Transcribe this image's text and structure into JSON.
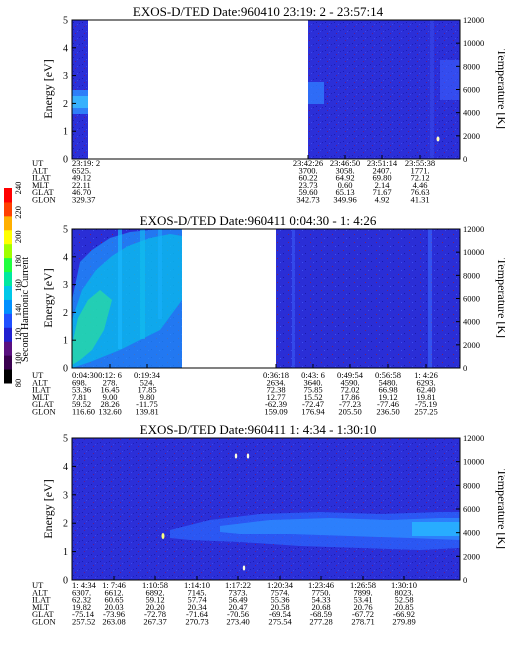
{
  "colorbar": {
    "label": "Second Harmonic Current",
    "ticks": [
      80,
      100,
      120,
      140,
      160,
      180,
      200,
      220,
      240
    ],
    "colors": [
      "#000000",
      "#3a0050",
      "#5a1080",
      "#2020d0",
      "#2050ff",
      "#0090ff",
      "#00c8e8",
      "#00e8a0",
      "#20ff40",
      "#a0ff00",
      "#ffff00",
      "#ffb000",
      "#ff4000",
      "#ff0000"
    ]
  },
  "chart_data": [
    {
      "type": "heatmap",
      "title": "EXOS-D/TED   Date:960410  23:19: 2 - 23:57:14",
      "ylabel": "Energy [eV]",
      "y2label": "Temperature [K]",
      "ylim": [
        0,
        5
      ],
      "y2lim": [
        0,
        12000
      ],
      "yticks": [
        "0",
        "1",
        "2",
        "3",
        "4",
        "5"
      ],
      "y2ticks": [
        "0",
        "2000",
        "4000",
        "6000",
        "8000",
        "10000",
        "12000"
      ],
      "rows": [
        {
          "label": "UT",
          "values": [
            "23:19: 2",
            "23:42:26",
            "23:46:50",
            "23:51:14",
            "23:55:38"
          ]
        },
        {
          "label": "ALT",
          "values": [
            "6525.",
            "3700.",
            "3058.",
            "2407.",
            "1771."
          ]
        },
        {
          "label": "ILAT",
          "values": [
            "49.12",
            "60.22",
            "64.92",
            "69.80",
            "72.12"
          ]
        },
        {
          "label": "MLT",
          "values": [
            "22.11",
            "23.73",
            "0.60",
            "2.14",
            "4.46"
          ]
        },
        {
          "label": "GLAT",
          "values": [
            "46.70",
            "59.60",
            "65.13",
            "71.67",
            "76.63"
          ]
        },
        {
          "label": "GLON",
          "values": [
            "329.37",
            "342.73",
            "349.96",
            "4.92",
            "41.31"
          ]
        }
      ]
    },
    {
      "type": "heatmap",
      "title": "EXOS-D/TED   Date:960411  0:04:30 - 1: 4:26",
      "ylabel": "Energy [eV]",
      "y2label": "Temperature [K]",
      "ylim": [
        0,
        5
      ],
      "y2lim": [
        0,
        12000
      ],
      "yticks": [
        "0",
        "1",
        "2",
        "3",
        "4",
        "5"
      ],
      "y2ticks": [
        "0",
        "2000",
        "4000",
        "6000",
        "8000",
        "10000",
        "12000"
      ],
      "rows": [
        {
          "label": "UT",
          "values": [
            "0:04:30",
            "0:12: 6",
            "0:19:34",
            "0:36:18",
            "0:43: 6",
            "0:49:54",
            "0:56:58",
            "1: 4:26"
          ]
        },
        {
          "label": "ALT",
          "values": [
            "698.",
            "278.",
            "524.",
            "2634.",
            "3640.",
            "4590.",
            "5480.",
            "6293."
          ]
        },
        {
          "label": "ILAT",
          "values": [
            "53.36",
            "16.45",
            "17.85",
            "72.38",
            "75.85",
            "72.02",
            "66.98",
            "62.40"
          ]
        },
        {
          "label": "MLT",
          "values": [
            "7.81",
            "9.00",
            "9.80",
            "12.77",
            "15.52",
            "17.86",
            "19.12",
            "19.81"
          ]
        },
        {
          "label": "GLAT",
          "values": [
            "59.52",
            "28.26",
            "-11.75",
            "-62.39",
            "-72.47",
            "-77.23",
            "-77.46",
            "-75.19"
          ]
        },
        {
          "label": "GLON",
          "values": [
            "116.60",
            "132.60",
            "139.81",
            "159.09",
            "176.94",
            "205.50",
            "236.50",
            "257.25"
          ]
        }
      ]
    },
    {
      "type": "heatmap",
      "title": "EXOS-D/TED   Date:960411  1: 4:34 - 1:30:10",
      "ylabel": "Energy [eV]",
      "y2label": "Temperature [K]",
      "ylim": [
        0,
        5
      ],
      "y2lim": [
        0,
        12000
      ],
      "yticks": [
        "0",
        "1",
        "2",
        "3",
        "4",
        "5"
      ],
      "y2ticks": [
        "0",
        "2000",
        "4000",
        "6000",
        "8000",
        "10000",
        "12000"
      ],
      "rows": [
        {
          "label": "UT",
          "values": [
            "1: 4:34",
            "1: 7:46",
            "1:10:58",
            "1:14:10",
            "1:17:22",
            "1:20:34",
            "1:23:46",
            "1:26:58",
            "1:30:10"
          ]
        },
        {
          "label": "ALT",
          "values": [
            "6307.",
            "6612.",
            "6892.",
            "7145.",
            "7373.",
            "7574.",
            "7750.",
            "7899.",
            "8023."
          ]
        },
        {
          "label": "ILAT",
          "values": [
            "62.32",
            "60.65",
            "59.12",
            "57.74",
            "56.49",
            "55.36",
            "54.33",
            "53.41",
            "52.58"
          ]
        },
        {
          "label": "MLT",
          "values": [
            "19.82",
            "20.03",
            "20.20",
            "20.34",
            "20.47",
            "20.58",
            "20.68",
            "20.76",
            "20.85"
          ]
        },
        {
          "label": "GLAT",
          "values": [
            "-75.14",
            "-73.96",
            "-72.78",
            "-71.64",
            "-70.56",
            "-69.54",
            "-68.59",
            "-67.72",
            "-66.92"
          ]
        },
        {
          "label": "GLON",
          "values": [
            "257.52",
            "263.08",
            "267.37",
            "270.73",
            "273.40",
            "275.54",
            "277.28",
            "278.71",
            "279.89"
          ]
        }
      ]
    }
  ]
}
